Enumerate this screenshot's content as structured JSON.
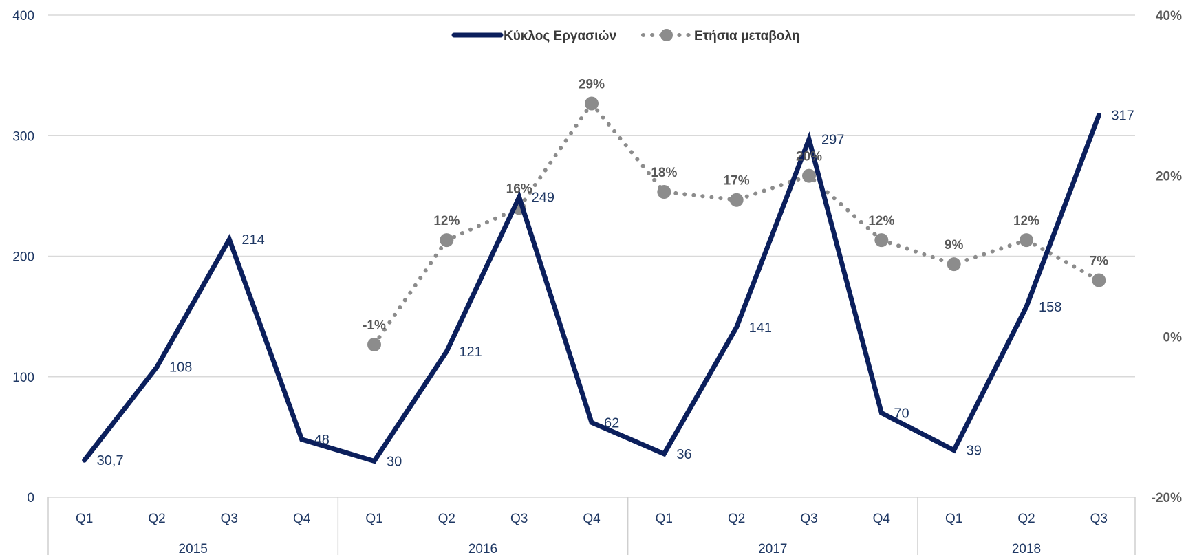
{
  "chart_data": {
    "type": "line",
    "legend_position": "top-center",
    "grid": true,
    "categories": [
      "Q1",
      "Q2",
      "Q3",
      "Q4",
      "Q1",
      "Q2",
      "Q3",
      "Q4",
      "Q1",
      "Q2",
      "Q3",
      "Q4",
      "Q1",
      "Q2",
      "Q3"
    ],
    "groups": [
      {
        "label": "2015",
        "start": 0,
        "end": 3
      },
      {
        "label": "2016",
        "start": 4,
        "end": 7
      },
      {
        "label": "2017",
        "start": 8,
        "end": 11
      },
      {
        "label": "2018",
        "start": 12,
        "end": 14
      }
    ],
    "y_left": {
      "min": 0,
      "max": 400,
      "ticks": [
        "0",
        "100",
        "200",
        "300",
        "400"
      ]
    },
    "y_right": {
      "min": -20,
      "max": 40,
      "ticks": [
        "-20%",
        "0%",
        "20%",
        "40%"
      ]
    },
    "series": [
      {
        "name": "Κύκλος Εργασιών",
        "axis": "left",
        "color": "#0b1f5c",
        "style": "solid",
        "values": [
          30.7,
          108,
          214,
          48,
          30,
          121,
          249,
          62,
          36,
          141,
          297,
          70,
          39,
          158,
          317
        ],
        "labels": [
          "30,7",
          "108",
          "214",
          "48",
          "30",
          "121",
          "249",
          "62",
          "36",
          "141",
          "297",
          "70",
          "39",
          "158",
          "317"
        ]
      },
      {
        "name": "Ετήσια μεταβολη",
        "axis": "right",
        "color": "#8c8c8c",
        "style": "dotted",
        "values": [
          null,
          null,
          null,
          null,
          -1,
          12,
          16,
          29,
          18,
          17,
          20,
          12,
          9,
          12,
          7
        ],
        "labels": [
          null,
          null,
          null,
          null,
          "-1%",
          "12%",
          "16%",
          "29%",
          "18%",
          "17%",
          "20%",
          "12%",
          "9%",
          "12%",
          "7%"
        ]
      }
    ]
  }
}
